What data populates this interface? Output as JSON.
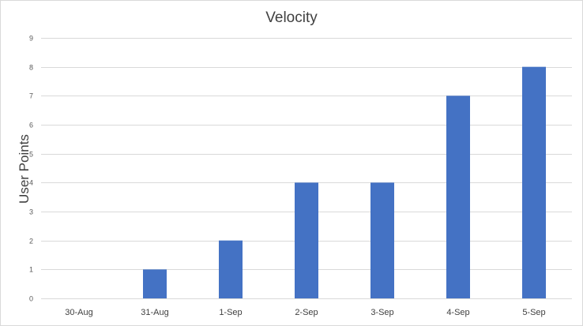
{
  "chart_data": {
    "type": "bar",
    "title": "Velocity",
    "xlabel": "",
    "ylabel": "User Points",
    "categories": [
      "30-Aug",
      "31-Aug",
      "1-Sep",
      "2-Sep",
      "3-Sep",
      "4-Sep",
      "5-Sep"
    ],
    "values": [
      0,
      1,
      2,
      4,
      4,
      7,
      8
    ],
    "ylim": [
      0,
      9
    ],
    "yticks": [
      0,
      1,
      2,
      3,
      4,
      5,
      6,
      7,
      8,
      9
    ],
    "grid": true,
    "bar_color": "#4472C4",
    "gridline_color": "#d9d9d9"
  }
}
